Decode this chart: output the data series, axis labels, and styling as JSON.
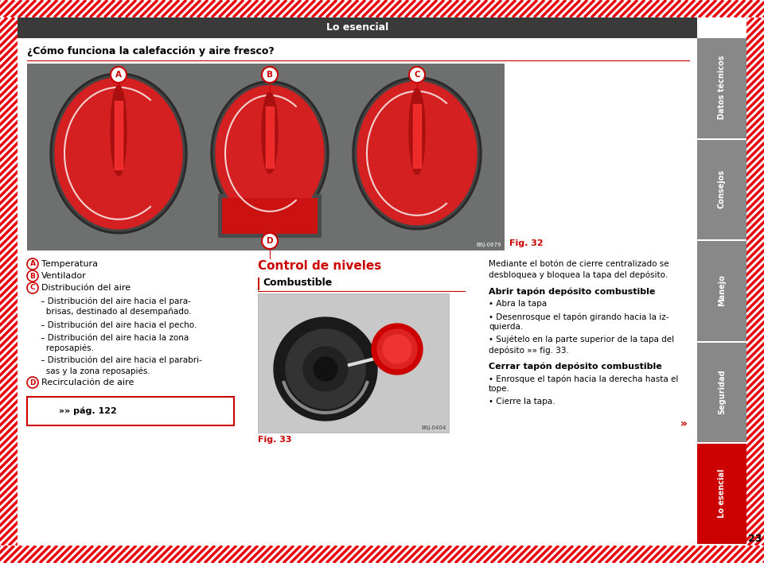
{
  "title_bar_text": "Lo esencial",
  "title_bar_bg": "#3a3a3a",
  "title_bar_text_color": "#ffffff",
  "page_bg": "#ffffff",
  "hatch_color": "#e8000a",
  "section_heading": "¿Cómo funciona la calefacción y aire fresco?",
  "section_heading_color": "#000000",
  "fig_label": "Fig. 32",
  "fig_label_color": "#cc0000",
  "item_A": "Temperatura",
  "item_B": "Ventilador",
  "item_C": "Distribución del aire",
  "item_C1": " – Distribución del aire hacia el para-\n   brisas, destinado al desempañado.",
  "item_C2": " – Distribución del aire hacia el pecho.",
  "item_C3": " – Distribución del aire hacia la zona\n   reposapiés.",
  "item_C4": " – Distribución del aire hacia el parabri-\n   sas y la zona reposapiés.",
  "item_D": "Recirculación de aire",
  "book_ref": "»» pág. 122",
  "control_niveles_title": "Control de niveles",
  "control_niveles_color": "#cc0000",
  "combustible_label": "Combustible",
  "fig33_label": "Fig. 33",
  "right_text_1": "Mediante el botón de cierre centralizado se\ndesbloquea y bloquea la tapa del depósito.",
  "right_heading_1": "Abrir tapón depósito combustible",
  "right_bullet_1": "Abra la tapa",
  "right_bullet_2": "Desenrosque el tapón girando hacia la iz-\nquierda.",
  "right_bullet_3": "Sujételo en la parte superior de la tapa del\ndepósito »» fig. 33.",
  "right_heading_2": "Cerrar tapón depósito combustible",
  "right_bullet_4": "Enrosque el tapón hacia la derecha hasta el\ntope.",
  "right_bullet_5": "Cierre la tapa.",
  "side_tabs": [
    "Datos técnicos",
    "Consejos",
    "Manejo",
    "Seguridad",
    "Lo esencial"
  ],
  "side_tab_active": "Lo esencial",
  "side_tab_active_color": "#cc0000",
  "side_tab_inactive_color": "#888888",
  "side_tab_text_color": "#ffffff",
  "page_number": "23",
  "panel_bg": "#6e7070",
  "knob_color": "#d42020",
  "code_img32": "B6J-0679",
  "code_img33": "B6J-0404"
}
